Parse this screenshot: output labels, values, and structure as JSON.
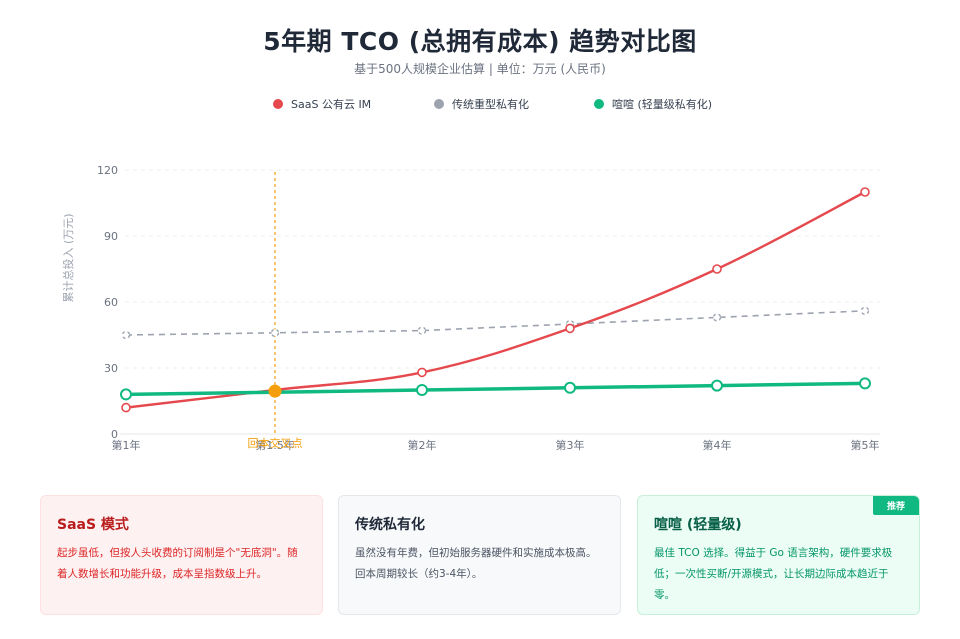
{
  "header": {
    "title": "5年期 TCO (总拥有成本) 趋势对比图",
    "subtitle": "基于500人规模企业估算 | 单位：万元 (人民币)"
  },
  "legend": [
    {
      "label": "SaaS 公有云 IM",
      "color": "#e5484d"
    },
    {
      "label": "传统重型私有化",
      "color": "#9ca3af"
    },
    {
      "label": "喧喧 (轻量级私有化)",
      "color": "#10b981"
    }
  ],
  "chart_data": {
    "type": "line",
    "title": "5年期 TCO (总拥有成本) 趋势对比图",
    "subtitle": "基于500人规模企业估算 | 单位：万元 (人民币)",
    "xlabel": "",
    "ylabel": "累计总投入 (万元)",
    "categories": [
      "第1年",
      "第1.5年",
      "第2年",
      "第3年",
      "第4年",
      "第5年"
    ],
    "y_ticks": [
      0,
      30,
      60,
      90,
      120
    ],
    "ylim": [
      0,
      120
    ],
    "grid": true,
    "legend_position": "top",
    "series": [
      {
        "name": "SaaS 公有云 IM",
        "color": "#e5484d",
        "style": "solid-smooth",
        "values": [
          12,
          20,
          28,
          48,
          75,
          110
        ]
      },
      {
        "name": "传统重型私有化",
        "color": "#9ca3af",
        "style": "dashed",
        "values": [
          45,
          46,
          47,
          50,
          53,
          56
        ]
      },
      {
        "name": "喧喧 (轻量级私有化)",
        "color": "#10b981",
        "style": "solid-thick",
        "values": [
          18,
          19,
          20,
          21,
          22,
          23
        ]
      }
    ],
    "annotations": [
      {
        "type": "vertical-line",
        "x": "第1.5年",
        "label": "回本交叉点",
        "color": "#f59e0b",
        "point_value": 19.5
      }
    ]
  },
  "cards": [
    {
      "title": "SaaS 模式",
      "body": "起步虽低，但按人头收费的订阅制是个\"无底洞\"。随着人数增长和功能升级，成本呈指数级上升。"
    },
    {
      "title": "传统私有化",
      "body": "虽然没有年费，但初始服务器硬件和实施成本极高。回本周期较长（约3-4年）。"
    },
    {
      "title": "喧喧 (轻量级)",
      "badge": "推荐",
      "body": "最佳 TCO 选择。得益于 Go 语言架构，硬件要求极低；一次性买断/开源模式，让长期边际成本趋近于零。"
    }
  ]
}
